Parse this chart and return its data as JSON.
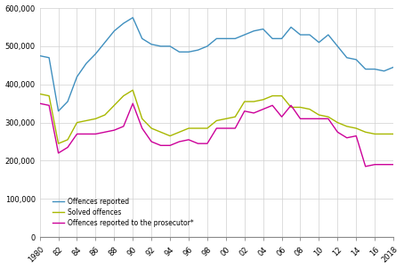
{
  "years": [
    1980,
    1981,
    1982,
    1983,
    1984,
    1985,
    1986,
    1987,
    1988,
    1989,
    1990,
    1991,
    1992,
    1993,
    1994,
    1995,
    1996,
    1997,
    1998,
    1999,
    2000,
    2001,
    2002,
    2003,
    2004,
    2005,
    2006,
    2007,
    2008,
    2009,
    2010,
    2011,
    2012,
    2013,
    2014,
    2015,
    2016,
    2017,
    2018
  ],
  "offences_reported": [
    475000,
    470000,
    330000,
    355000,
    420000,
    455000,
    480000,
    510000,
    540000,
    560000,
    575000,
    520000,
    505000,
    500000,
    500000,
    485000,
    485000,
    490000,
    500000,
    520000,
    520000,
    520000,
    530000,
    540000,
    545000,
    520000,
    520000,
    550000,
    530000,
    530000,
    510000,
    530000,
    500000,
    470000,
    465000,
    440000,
    440000,
    435000,
    445000
  ],
  "solved_offences": [
    375000,
    370000,
    245000,
    255000,
    300000,
    305000,
    310000,
    320000,
    345000,
    370000,
    385000,
    310000,
    285000,
    275000,
    265000,
    275000,
    285000,
    285000,
    285000,
    305000,
    310000,
    315000,
    355000,
    355000,
    360000,
    370000,
    370000,
    340000,
    340000,
    335000,
    320000,
    315000,
    300000,
    290000,
    285000,
    275000,
    270000,
    270000,
    270000
  ],
  "offences_prosecutor": [
    350000,
    345000,
    220000,
    235000,
    270000,
    270000,
    270000,
    275000,
    280000,
    290000,
    350000,
    285000,
    250000,
    240000,
    240000,
    250000,
    255000,
    245000,
    245000,
    285000,
    285000,
    285000,
    330000,
    325000,
    335000,
    345000,
    315000,
    345000,
    310000,
    310000,
    310000,
    310000,
    275000,
    260000,
    265000,
    185000,
    190000,
    190000,
    190000
  ],
  "color_reported": "#3f8fbf",
  "color_solved": "#a8b800",
  "color_prosecutor": "#cc0099",
  "ylim": [
    0,
    600000
  ],
  "yticks": [
    0,
    100000,
    200000,
    300000,
    400000,
    500000,
    600000
  ],
  "legend_reported": "Offences reported",
  "legend_solved": "Solved offences",
  "legend_prosecutor": "Offences reported to the prosecutor*",
  "xtick_years": [
    1980,
    1982,
    1984,
    1986,
    1988,
    1990,
    1992,
    1994,
    1996,
    1998,
    2000,
    2002,
    2004,
    2006,
    2008,
    2010,
    2012,
    2014,
    2016,
    2018
  ],
  "xtick_labels": [
    "1980",
    "82",
    "84",
    "86",
    "88",
    "90",
    "92",
    "94",
    "96",
    "98",
    "00",
    "02",
    "04",
    "06",
    "08",
    "10",
    "12",
    "14",
    "16",
    "2018"
  ]
}
